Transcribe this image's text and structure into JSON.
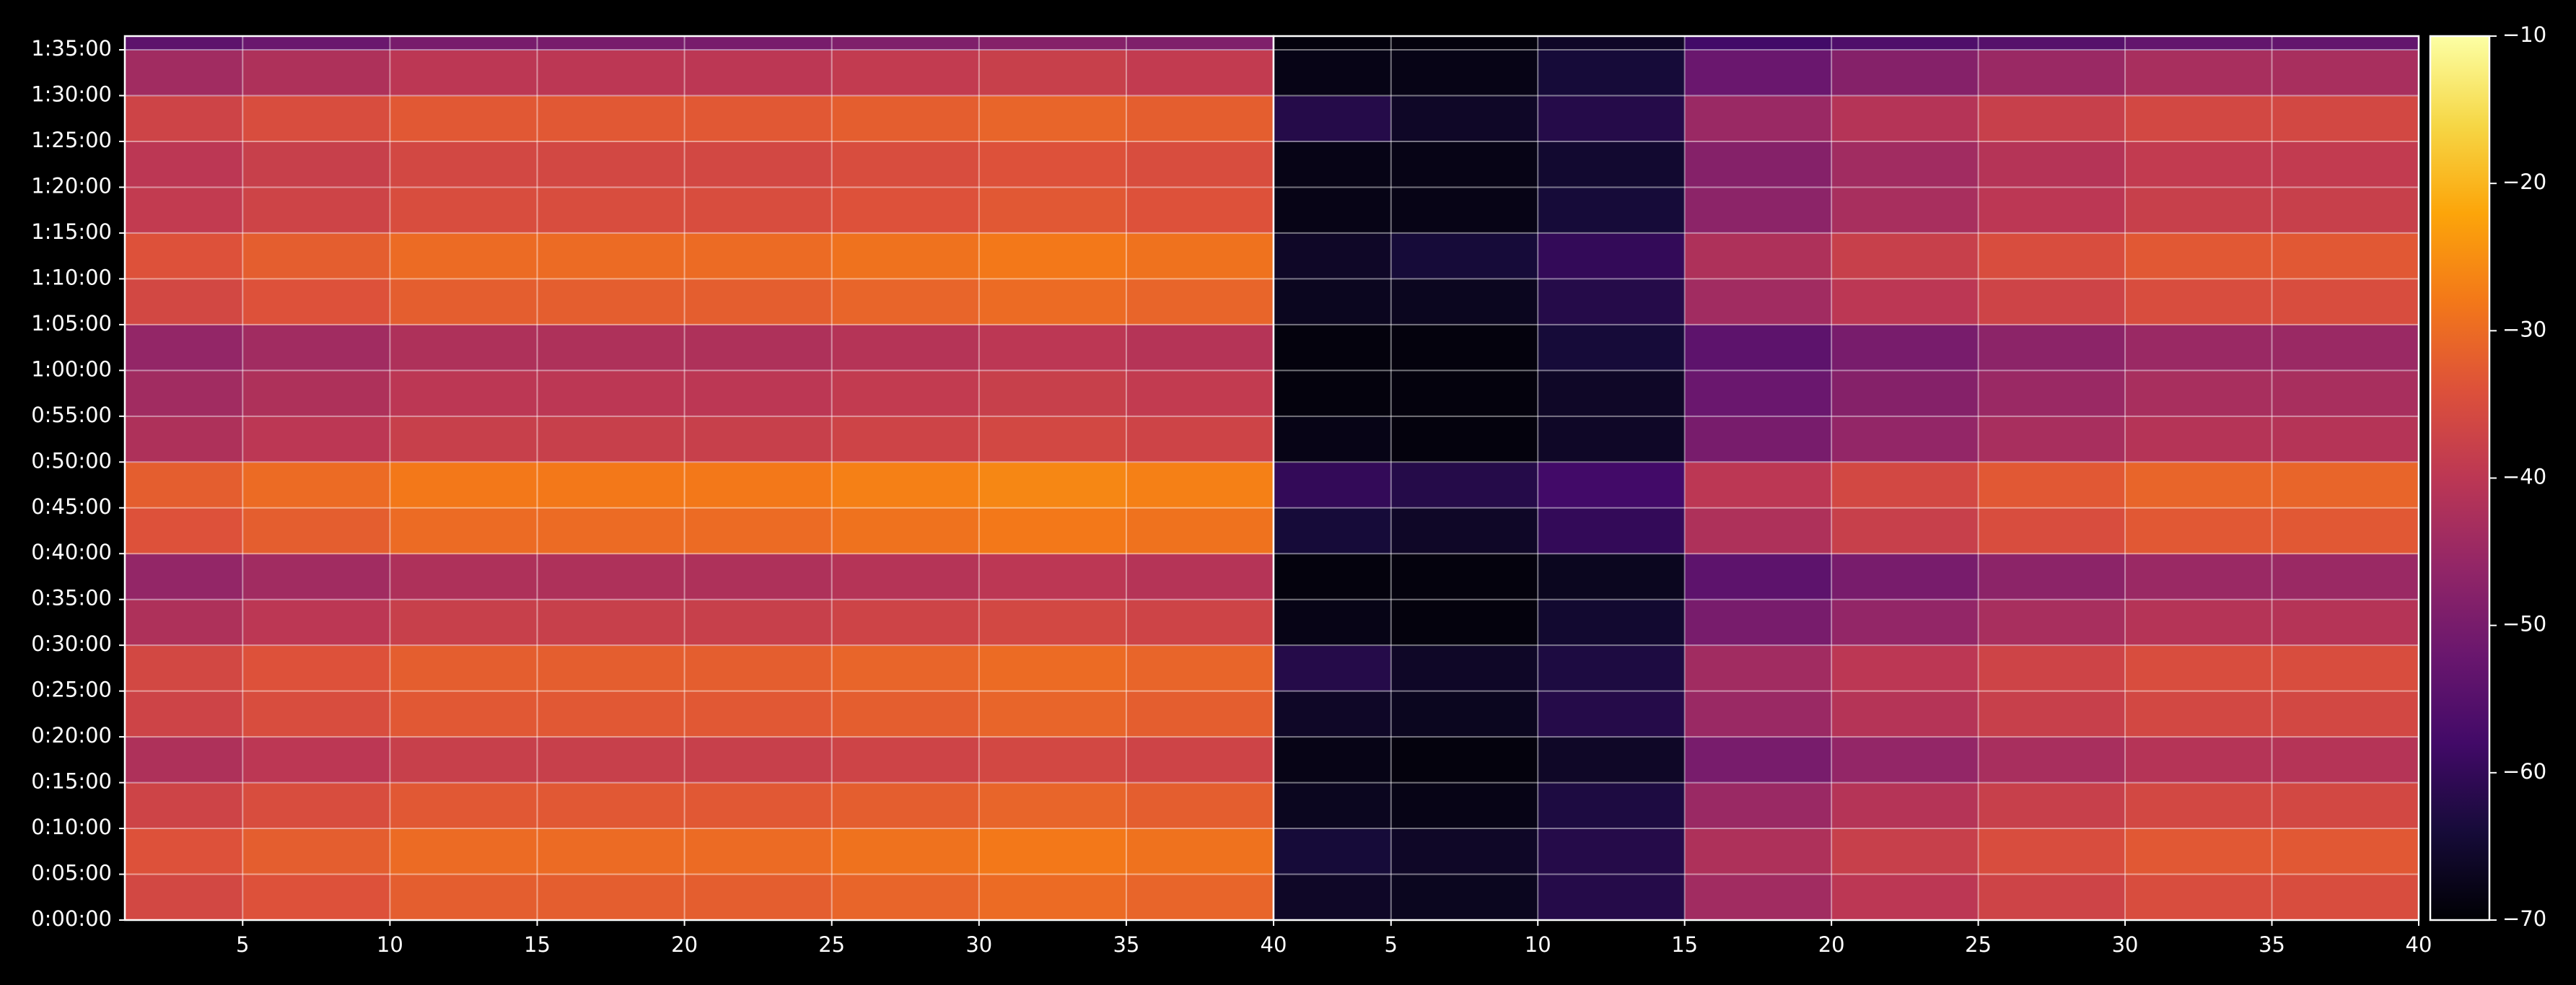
{
  "chart_data": {
    "type": "heatmap",
    "colormap": "inferno",
    "grid": true,
    "ylim": [
      0,
      5790
    ],
    "yticks": [
      {
        "value": 0,
        "label": "0:00:00"
      },
      {
        "value": 300,
        "label": "0:05:00"
      },
      {
        "value": 600,
        "label": "0:10:00"
      },
      {
        "value": 900,
        "label": "0:15:00"
      },
      {
        "value": 1200,
        "label": "0:20:00"
      },
      {
        "value": 1500,
        "label": "0:25:00"
      },
      {
        "value": 1800,
        "label": "0:30:00"
      },
      {
        "value": 2100,
        "label": "0:35:00"
      },
      {
        "value": 2400,
        "label": "0:40:00"
      },
      {
        "value": 2700,
        "label": "0:45:00"
      },
      {
        "value": 3000,
        "label": "0:50:00"
      },
      {
        "value": 3300,
        "label": "0:55:00"
      },
      {
        "value": 3600,
        "label": "1:00:00"
      },
      {
        "value": 3900,
        "label": "1:05:00"
      },
      {
        "value": 4200,
        "label": "1:10:00"
      },
      {
        "value": 4500,
        "label": "1:15:00"
      },
      {
        "value": 4800,
        "label": "1:20:00"
      },
      {
        "value": 5100,
        "label": "1:25:00"
      },
      {
        "value": 5400,
        "label": "1:30:00"
      },
      {
        "value": 5700,
        "label": "1:35:00"
      }
    ],
    "y_bins": [
      0,
      300,
      600,
      900,
      1200,
      1500,
      1800,
      2100,
      2400,
      2700,
      3000,
      3300,
      3600,
      3900,
      4200,
      4500,
      4800,
      5100,
      5400,
      5700,
      5790
    ],
    "colorbar": {
      "zlim": [
        -70,
        -10
      ],
      "zticks": [
        {
          "value": -70,
          "label": "−70"
        },
        {
          "value": -60,
          "label": "−60"
        },
        {
          "value": -50,
          "label": "−50"
        },
        {
          "value": -40,
          "label": "−40"
        },
        {
          "value": -30,
          "label": "−30"
        },
        {
          "value": -20,
          "label": "−20"
        },
        {
          "value": -10,
          "label": "−10"
        }
      ]
    },
    "panels": [
      {
        "xlim": [
          1,
          40
        ],
        "xticks": [
          5,
          10,
          15,
          20,
          25,
          30,
          35,
          40
        ],
        "x_bins": [
          1,
          5,
          10,
          15,
          20,
          25,
          30,
          35,
          40
        ],
        "values": [
          [
            -36,
            -34,
            -32,
            -32,
            -32,
            -31,
            -30,
            -31
          ],
          [
            -34,
            -32,
            -30,
            -30,
            -30,
            -29,
            -28,
            -29
          ],
          [
            -37,
            -35,
            -33,
            -33,
            -33,
            -32,
            -31,
            -32
          ],
          [
            -42,
            -40,
            -38,
            -38,
            -38,
            -37,
            -36,
            -37
          ],
          [
            -37,
            -35,
            -33,
            -33,
            -33,
            -32,
            -31,
            -32
          ],
          [
            -36,
            -34,
            -32,
            -32,
            -32,
            -31,
            -30,
            -31
          ],
          [
            -42,
            -40,
            -38,
            -38,
            -38,
            -37,
            -36,
            -37
          ],
          [
            -46,
            -44,
            -42,
            -42,
            -42,
            -41,
            -40,
            -41
          ],
          [
            -34,
            -32,
            -30,
            -30,
            -30,
            -29,
            -28,
            -29
          ],
          [
            -32,
            -30,
            -28,
            -28,
            -28,
            -27,
            -26,
            -27
          ],
          [
            -42,
            -40,
            -38,
            -38,
            -38,
            -37,
            -36,
            -37
          ],
          [
            -44,
            -42,
            -40,
            -40,
            -40,
            -39,
            -38,
            -39
          ],
          [
            -46,
            -44,
            -42,
            -42,
            -42,
            -41,
            -40,
            -41
          ],
          [
            -36,
            -34,
            -32,
            -32,
            -32,
            -31,
            -30,
            -31
          ],
          [
            -34,
            -32,
            -30,
            -30,
            -30,
            -29,
            -28,
            -29
          ],
          [
            -39,
            -37,
            -35,
            -35,
            -35,
            -34,
            -33,
            -34
          ],
          [
            -40,
            -38,
            -36,
            -36,
            -36,
            -35,
            -34,
            -35
          ],
          [
            -37,
            -35,
            -33,
            -33,
            -33,
            -32,
            -31,
            -32
          ],
          [
            -44,
            -42,
            -40,
            -40,
            -40,
            -39,
            -38,
            -39
          ],
          [
            -54,
            -52,
            -50,
            -50,
            -50,
            -49,
            -48,
            -49
          ]
        ]
      },
      {
        "xlim": [
          1,
          40
        ],
        "xticks": [
          5,
          10,
          15,
          20,
          25,
          30,
          35,
          40
        ],
        "x_bins": [
          1,
          5,
          10,
          15,
          20,
          25,
          30,
          35,
          40
        ],
        "values": [
          [
            -66,
            -67,
            -62,
            -44,
            -40,
            -37,
            -35,
            -35
          ],
          [
            -64,
            -66,
            -62,
            -42,
            -38,
            -35,
            -33,
            -33
          ],
          [
            -67,
            -68,
            -63,
            -45,
            -41,
            -38,
            -36,
            -36
          ],
          [
            -68,
            -69,
            -66,
            -50,
            -46,
            -43,
            -41,
            -41
          ],
          [
            -66,
            -67,
            -62,
            -45,
            -41,
            -38,
            -36,
            -36
          ],
          [
            -62,
            -66,
            -63,
            -44,
            -40,
            -37,
            -35,
            -35
          ],
          [
            -68,
            -69,
            -65,
            -50,
            -46,
            -43,
            -41,
            -41
          ],
          [
            -69,
            -69,
            -67,
            -54,
            -50,
            -47,
            -45,
            -45
          ],
          [
            -64,
            -66,
            -60,
            -42,
            -38,
            -35,
            -33,
            -33
          ],
          [
            -60,
            -62,
            -58,
            -40,
            -36,
            -33,
            -31,
            -31
          ],
          [
            -68,
            -69,
            -66,
            -50,
            -46,
            -43,
            -41,
            -41
          ],
          [
            -69,
            -69,
            -66,
            -52,
            -48,
            -45,
            -43,
            -43
          ],
          [
            -69,
            -69,
            -64,
            -54,
            -50,
            -47,
            -45,
            -45
          ],
          [
            -67,
            -67,
            -62,
            -44,
            -40,
            -37,
            -35,
            -35
          ],
          [
            -66,
            -64,
            -60,
            -42,
            -38,
            -35,
            -33,
            -33
          ],
          [
            -68,
            -68,
            -64,
            -47,
            -43,
            -40,
            -38,
            -38
          ],
          [
            -68,
            -68,
            -65,
            -48,
            -44,
            -41,
            -39,
            -39
          ],
          [
            -62,
            -66,
            -62,
            -45,
            -41,
            -38,
            -36,
            -36
          ],
          [
            -68,
            -68,
            -64,
            -52,
            -48,
            -45,
            -43,
            -43
          ],
          [
            -69,
            -69,
            -66,
            -58,
            -56,
            -55,
            -53,
            -53
          ]
        ]
      }
    ]
  }
}
